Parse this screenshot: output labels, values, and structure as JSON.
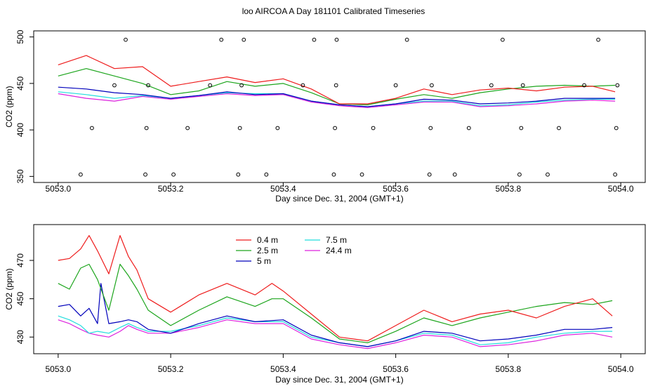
{
  "title": "loo AIRCOA A  Day 181101  Calibrated Timeseries",
  "colors": {
    "0.4 m": "#ee1c1c",
    "2.5 m": "#1ca51c",
    "5 m": "#0000bb",
    "7.5 m": "#22dddd",
    "24.4 m": "#dd22dd"
  },
  "chart_data": [
    {
      "type": "line",
      "panel": "top",
      "xlabel": "Day since Dec. 31, 2004 (GMT+1)",
      "ylabel": "CO2 (ppm)",
      "xlim": [
        5053.0,
        5054.0
      ],
      "ylim": [
        350,
        500
      ],
      "xticks": [
        5053.0,
        5053.2,
        5053.4,
        5053.6,
        5053.8,
        5054.0
      ],
      "xtick_labels": [
        "5053.0",
        "5053.2",
        "5053.4",
        "5053.6",
        "5053.8",
        "5054.0"
      ],
      "yticks": [
        350,
        400,
        450,
        500
      ],
      "ytick_labels": [
        "350",
        "400",
        "450",
        "500"
      ],
      "grid": false,
      "series": [
        {
          "name": "0.4 m",
          "x": [
            5053.0,
            5053.05,
            5053.1,
            5053.15,
            5053.2,
            5053.25,
            5053.3,
            5053.35,
            5053.4,
            5053.45,
            5053.5,
            5053.55,
            5053.6,
            5053.65,
            5053.7,
            5053.75,
            5053.8,
            5053.85,
            5053.9,
            5053.95,
            5053.99
          ],
          "y": [
            470,
            480,
            466,
            468,
            447,
            452,
            457,
            451,
            455,
            444,
            428,
            428,
            434,
            444,
            438,
            443,
            445,
            442,
            446,
            447,
            441
          ]
        },
        {
          "name": "2.5 m",
          "x": [
            5053.0,
            5053.05,
            5053.1,
            5053.15,
            5053.2,
            5053.25,
            5053.3,
            5053.35,
            5053.4,
            5053.45,
            5053.5,
            5053.55,
            5053.6,
            5053.65,
            5053.7,
            5053.75,
            5053.8,
            5053.85,
            5053.9,
            5053.95,
            5053.99
          ],
          "y": [
            458,
            466,
            458,
            450,
            438,
            442,
            452,
            447,
            450,
            440,
            428,
            427,
            433,
            438,
            434,
            440,
            444,
            447,
            448,
            447,
            448
          ]
        },
        {
          "name": "5 m",
          "x": [
            5053.0,
            5053.05,
            5053.1,
            5053.15,
            5053.2,
            5053.25,
            5053.3,
            5053.35,
            5053.4,
            5053.45,
            5053.5,
            5053.55,
            5053.6,
            5053.65,
            5053.7,
            5053.75,
            5053.8,
            5053.85,
            5053.9,
            5053.95,
            5053.99
          ],
          "y": [
            446,
            444,
            440,
            438,
            434,
            437,
            441,
            438,
            439,
            431,
            427,
            425,
            428,
            433,
            432,
            428,
            429,
            431,
            434,
            434,
            434
          ]
        },
        {
          "name": "7.5 m",
          "x": [
            5053.0,
            5053.05,
            5053.1,
            5053.15,
            5053.2,
            5053.25,
            5053.3,
            5053.35,
            5053.4,
            5053.45,
            5053.5,
            5053.55,
            5053.6,
            5053.65,
            5053.7,
            5053.75,
            5053.8,
            5053.85,
            5053.9,
            5053.95,
            5053.99
          ],
          "y": [
            441,
            438,
            434,
            437,
            434,
            437,
            440,
            439,
            439,
            431,
            427,
            425,
            428,
            431,
            431,
            426,
            427,
            430,
            432,
            433,
            433
          ]
        },
        {
          "name": "24.4 m",
          "x": [
            5053.0,
            5053.05,
            5053.1,
            5053.15,
            5053.2,
            5053.25,
            5053.3,
            5053.35,
            5053.4,
            5053.45,
            5053.5,
            5053.55,
            5053.6,
            5053.65,
            5053.7,
            5053.75,
            5053.8,
            5053.85,
            5053.9,
            5053.95,
            5053.99
          ],
          "y": [
            439,
            434,
            431,
            436,
            433,
            436,
            439,
            437,
            438,
            430,
            426,
            424,
            427,
            430,
            430,
            425,
            426,
            428,
            431,
            432,
            431
          ]
        }
      ],
      "markers": {
        "x": [
          5053.04,
          5053.06,
          5053.1,
          5053.12,
          5053.155,
          5053.157,
          5053.16,
          5053.205,
          5053.23,
          5053.27,
          5053.29,
          5053.32,
          5053.323,
          5053.326,
          5053.33,
          5053.37,
          5053.39,
          5053.435,
          5053.455,
          5053.49,
          5053.492,
          5053.494,
          5053.495,
          5053.54,
          5053.56,
          5053.6,
          5053.62,
          5053.66,
          5053.662,
          5053.664,
          5053.705,
          5053.73,
          5053.77,
          5053.79,
          5053.82,
          5053.823,
          5053.826,
          5053.87,
          5053.89,
          5053.935,
          5053.96,
          5053.99,
          5053.992,
          5053.994
        ],
        "y": [
          352,
          402,
          448,
          497,
          352,
          402,
          448,
          352,
          402,
          448,
          497,
          352,
          402,
          448,
          497,
          352,
          402,
          448,
          497,
          352,
          402,
          448,
          497,
          352,
          402,
          448,
          497,
          352,
          402,
          448,
          352,
          402,
          448,
          497,
          352,
          402,
          448,
          352,
          402,
          448,
          497,
          352,
          402,
          448
        ]
      }
    },
    {
      "type": "line",
      "panel": "bottom",
      "xlabel": "Day since Dec. 31, 2004 (GMT+1)",
      "ylabel": "CO2 (ppm)",
      "xlim": [
        5053.0,
        5054.0
      ],
      "ylim": [
        424,
        486
      ],
      "xticks": [
        5053.0,
        5053.2,
        5053.4,
        5053.6,
        5053.8,
        5054.0
      ],
      "xtick_labels": [
        "5053.0",
        "5053.2",
        "5053.4",
        "5053.6",
        "5053.8",
        "5054.0"
      ],
      "yticks": [
        430,
        450,
        470
      ],
      "ytick_labels": [
        "430",
        "450",
        "470"
      ],
      "grid": false,
      "legend": {
        "placement": "top-left",
        "entries": [
          "0.4 m",
          "2.5 m",
          "5 m",
          "7.5 m",
          "24.4 m"
        ]
      },
      "series": [
        {
          "name": "0.4 m",
          "x": [
            5053.0,
            5053.02,
            5053.04,
            5053.055,
            5053.07,
            5053.09,
            5053.11,
            5053.125,
            5053.14,
            5053.16,
            5053.2,
            5053.25,
            5053.3,
            5053.35,
            5053.38,
            5053.4,
            5053.45,
            5053.5,
            5053.55,
            5053.6,
            5053.65,
            5053.7,
            5053.75,
            5053.8,
            5053.85,
            5053.9,
            5053.95,
            5053.985
          ],
          "y": [
            470,
            471,
            476,
            483,
            475,
            463,
            483,
            472,
            465,
            450,
            443,
            452,
            458,
            452,
            458,
            454,
            442,
            430,
            428,
            436,
            444,
            438,
            442,
            444,
            440,
            446,
            450,
            441
          ]
        },
        {
          "name": "2.5 m",
          "x": [
            5053.0,
            5053.02,
            5053.04,
            5053.055,
            5053.07,
            5053.09,
            5053.11,
            5053.125,
            5053.14,
            5053.16,
            5053.2,
            5053.25,
            5053.3,
            5053.35,
            5053.38,
            5053.4,
            5053.45,
            5053.5,
            5053.55,
            5053.6,
            5053.65,
            5053.7,
            5053.75,
            5053.8,
            5053.85,
            5053.9,
            5053.95,
            5053.985
          ],
          "y": [
            458,
            455,
            466,
            468,
            460,
            444,
            468,
            462,
            455,
            444,
            436,
            444,
            451,
            446,
            450,
            450,
            440,
            429,
            427,
            433,
            440,
            436,
            440,
            443,
            446,
            448,
            447,
            449
          ]
        },
        {
          "name": "5 m",
          "x": [
            5053.0,
            5053.02,
            5053.04,
            5053.055,
            5053.07,
            5053.076,
            5053.09,
            5053.11,
            5053.125,
            5053.14,
            5053.16,
            5053.2,
            5053.25,
            5053.3,
            5053.35,
            5053.4,
            5053.45,
            5053.5,
            5053.55,
            5053.6,
            5053.65,
            5053.7,
            5053.75,
            5053.8,
            5053.85,
            5053.9,
            5053.95,
            5053.985
          ],
          "y": [
            446,
            447,
            441,
            445,
            437,
            458,
            437,
            438,
            439,
            438,
            434,
            432,
            437,
            441,
            438,
            439,
            431,
            427,
            425,
            428,
            433,
            432,
            428,
            429,
            431,
            434,
            434,
            435
          ]
        },
        {
          "name": "7.5 m",
          "x": [
            5053.0,
            5053.02,
            5053.04,
            5053.055,
            5053.07,
            5053.09,
            5053.11,
            5053.125,
            5053.14,
            5053.16,
            5053.2,
            5053.25,
            5053.3,
            5053.35,
            5053.4,
            5053.45,
            5053.5,
            5053.55,
            5053.6,
            5053.65,
            5053.7,
            5053.75,
            5053.8,
            5053.85,
            5053.9,
            5053.95,
            5053.985
          ],
          "y": [
            441,
            439,
            436,
            432,
            433,
            432,
            435,
            437,
            435,
            433,
            433,
            436,
            440,
            438,
            438,
            430,
            427,
            425,
            428,
            432,
            431,
            426,
            427,
            430,
            432,
            433,
            433
          ]
        },
        {
          "name": "24.4 m",
          "x": [
            5053.0,
            5053.02,
            5053.04,
            5053.055,
            5053.07,
            5053.09,
            5053.11,
            5053.125,
            5053.14,
            5053.16,
            5053.2,
            5053.25,
            5053.3,
            5053.35,
            5053.4,
            5053.45,
            5053.5,
            5053.55,
            5053.6,
            5053.65,
            5053.7,
            5053.75,
            5053.8,
            5053.85,
            5053.9,
            5053.95,
            5053.985
          ],
          "y": [
            439,
            437,
            434,
            432,
            431,
            430,
            433,
            436,
            434,
            432,
            432,
            435,
            439,
            437,
            437,
            429,
            426,
            424,
            427,
            431,
            430,
            425,
            426,
            428,
            431,
            432,
            430
          ]
        }
      ]
    }
  ]
}
